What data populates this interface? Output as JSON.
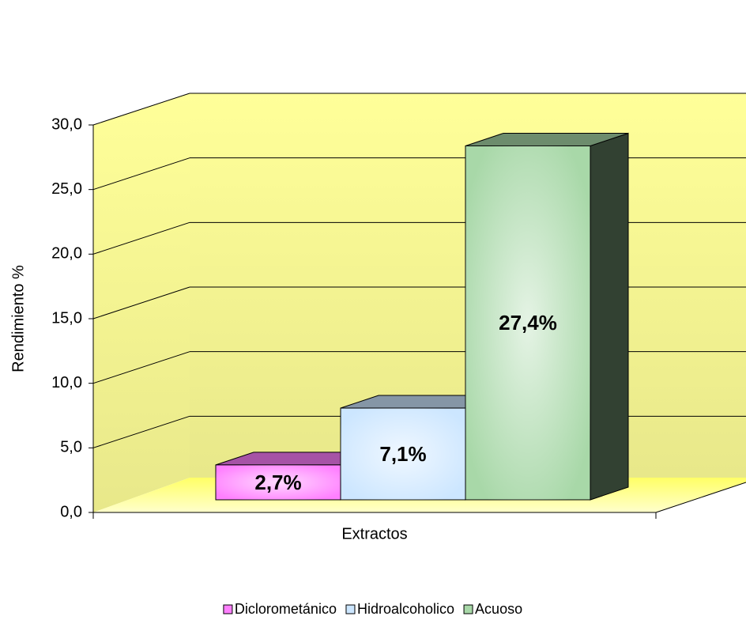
{
  "chart_data": {
    "type": "bar3d",
    "y_label": "Rendimiento %",
    "x_label": "Extractos",
    "categories": [
      null
    ],
    "series": [
      {
        "name": "Diclorometánico",
        "color": "#ff80ff",
        "values": [
          2.7
        ],
        "value_labels": [
          "2,7%"
        ]
      },
      {
        "name": "Hidroalcoholico",
        "color": "#cce6ff",
        "values": [
          7.1
        ],
        "value_labels": [
          "7,1%"
        ]
      },
      {
        "name": "Acuoso",
        "color": "#a8d8a8",
        "values": [
          27.4
        ],
        "value_labels": [
          "27,4%"
        ]
      }
    ],
    "ylim": [
      0,
      30
    ],
    "yticks": [
      {
        "value": 0,
        "label": "0,0"
      },
      {
        "value": 5,
        "label": "5,0"
      },
      {
        "value": 10,
        "label": "10,0"
      },
      {
        "value": 15,
        "label": "15,0"
      },
      {
        "value": 20,
        "label": "20,0"
      },
      {
        "value": 25,
        "label": "25,0"
      },
      {
        "value": 30,
        "label": "30,0"
      }
    ],
    "grid": true,
    "legend": "bottom"
  }
}
